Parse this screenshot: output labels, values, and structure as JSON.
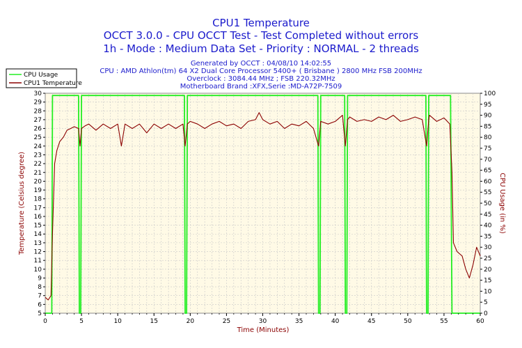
{
  "chart_data": {
    "type": "line",
    "title": "CPU1 Temperature",
    "subtitle_lines": [
      "OCCT 3.0.0 - CPU OCCT Test - Test Completed without errors",
      "1h - Mode : Medium Data Set - Priority : NORMAL - 2 threads"
    ],
    "info_lines": [
      "Generated by OCCT : 04/08/10 14:02:55",
      "CPU : AMD Athlon(tm) 64 X2 Dual Core Processor 5400+ ( Brisbane ) 2800 MHz FSB 200MHz",
      "Overclock : 3084.44 MHz ; FSB 220.32MHz",
      "Motherboard Brand :XFX,Serie :MD-A72P-7509"
    ],
    "xlabel": "Time (Minutes)",
    "ylabel_left": "Temperature (Celsius degree)",
    "ylabel_right": "CPU Usage (in %)",
    "xlim": [
      0,
      60
    ],
    "ylim_left": [
      5,
      30
    ],
    "ylim_right": [
      0,
      100
    ],
    "x_ticks": [
      "0",
      "5",
      "10",
      "15",
      "20",
      "25",
      "30",
      "35",
      "40",
      "45",
      "50",
      "55",
      "60"
    ],
    "y_left_ticks": [
      "5",
      "6",
      "7",
      "8",
      "9",
      "10",
      "11",
      "12",
      "13",
      "14",
      "15",
      "16",
      "17",
      "18",
      "19",
      "20",
      "21",
      "22",
      "23",
      "24",
      "25",
      "26",
      "27",
      "28",
      "29",
      "30"
    ],
    "y_right_ticks": [
      "0",
      "5",
      "10",
      "15",
      "20",
      "25",
      "30",
      "35",
      "40",
      "45",
      "50",
      "55",
      "60",
      "65",
      "70",
      "75",
      "80",
      "85",
      "90",
      "95",
      "100"
    ],
    "grid": true,
    "legend_position": "top-left",
    "series": [
      {
        "name": "CPU Usage",
        "axis": "right",
        "color": "#22ee22",
        "points": [
          [
            0,
            0
          ],
          [
            0.9,
            0
          ],
          [
            1.0,
            99
          ],
          [
            4.6,
            99
          ],
          [
            4.7,
            0
          ],
          [
            4.9,
            0
          ],
          [
            5.0,
            99
          ],
          [
            19.2,
            99
          ],
          [
            19.3,
            0
          ],
          [
            19.5,
            0
          ],
          [
            19.6,
            99
          ],
          [
            37.6,
            99
          ],
          [
            37.7,
            0
          ],
          [
            37.9,
            0
          ],
          [
            38.0,
            99
          ],
          [
            41.3,
            99
          ],
          [
            41.4,
            0
          ],
          [
            41.6,
            0
          ],
          [
            41.7,
            99
          ],
          [
            52.5,
            99
          ],
          [
            52.6,
            0
          ],
          [
            52.8,
            0
          ],
          [
            52.9,
            99
          ],
          [
            55.9,
            99
          ],
          [
            56.1,
            0
          ],
          [
            60,
            0
          ]
        ]
      },
      {
        "name": "CPU1 Temperature",
        "axis": "left",
        "color": "#8b0000",
        "points": [
          [
            0,
            6.8
          ],
          [
            0.4,
            6.5
          ],
          [
            0.8,
            7.0
          ],
          [
            1.0,
            14
          ],
          [
            1.3,
            22
          ],
          [
            1.6,
            23.5
          ],
          [
            2.0,
            24.5
          ],
          [
            2.5,
            25
          ],
          [
            3.0,
            25.8
          ],
          [
            3.5,
            26
          ],
          [
            4.0,
            26.2
          ],
          [
            4.6,
            26
          ],
          [
            4.8,
            24
          ],
          [
            5.0,
            26
          ],
          [
            5.5,
            26.3
          ],
          [
            6.0,
            26.5
          ],
          [
            7,
            25.8
          ],
          [
            8,
            26.5
          ],
          [
            9,
            26
          ],
          [
            10,
            26.5
          ],
          [
            10.5,
            24
          ],
          [
            11,
            26.5
          ],
          [
            12,
            26
          ],
          [
            13,
            26.5
          ],
          [
            14,
            25.5
          ],
          [
            15,
            26.5
          ],
          [
            16,
            26
          ],
          [
            17,
            26.5
          ],
          [
            18,
            26
          ],
          [
            19,
            26.5
          ],
          [
            19.3,
            24
          ],
          [
            19.6,
            26.5
          ],
          [
            20,
            26.8
          ],
          [
            21,
            26.5
          ],
          [
            22,
            26
          ],
          [
            23,
            26.5
          ],
          [
            24,
            26.8
          ],
          [
            25,
            26.3
          ],
          [
            26,
            26.5
          ],
          [
            27,
            26
          ],
          [
            28,
            26.8
          ],
          [
            29,
            27
          ],
          [
            29.5,
            27.8
          ],
          [
            30,
            27
          ],
          [
            31,
            26.5
          ],
          [
            32,
            26.8
          ],
          [
            33,
            26
          ],
          [
            34,
            26.5
          ],
          [
            35,
            26.3
          ],
          [
            36,
            26.8
          ],
          [
            37,
            26
          ],
          [
            37.7,
            24
          ],
          [
            38,
            26.8
          ],
          [
            39,
            26.5
          ],
          [
            40,
            26.8
          ],
          [
            41,
            27.5
          ],
          [
            41.4,
            24
          ],
          [
            41.7,
            27
          ],
          [
            42,
            27.3
          ],
          [
            43,
            26.8
          ],
          [
            44,
            27
          ],
          [
            45,
            26.8
          ],
          [
            46,
            27.3
          ],
          [
            47,
            27
          ],
          [
            48,
            27.5
          ],
          [
            49,
            26.8
          ],
          [
            50,
            27
          ],
          [
            51,
            27.3
          ],
          [
            52,
            27
          ],
          [
            52.6,
            24
          ],
          [
            52.9,
            27
          ],
          [
            53,
            27.5
          ],
          [
            54,
            26.8
          ],
          [
            55,
            27.2
          ],
          [
            55.8,
            26.5
          ],
          [
            56.1,
            21
          ],
          [
            56.3,
            13
          ],
          [
            56.8,
            12
          ],
          [
            57.5,
            11.5
          ],
          [
            58,
            10
          ],
          [
            58.5,
            9
          ],
          [
            59,
            10.5
          ],
          [
            59.5,
            12.5
          ],
          [
            60,
            11.5
          ]
        ]
      }
    ]
  }
}
